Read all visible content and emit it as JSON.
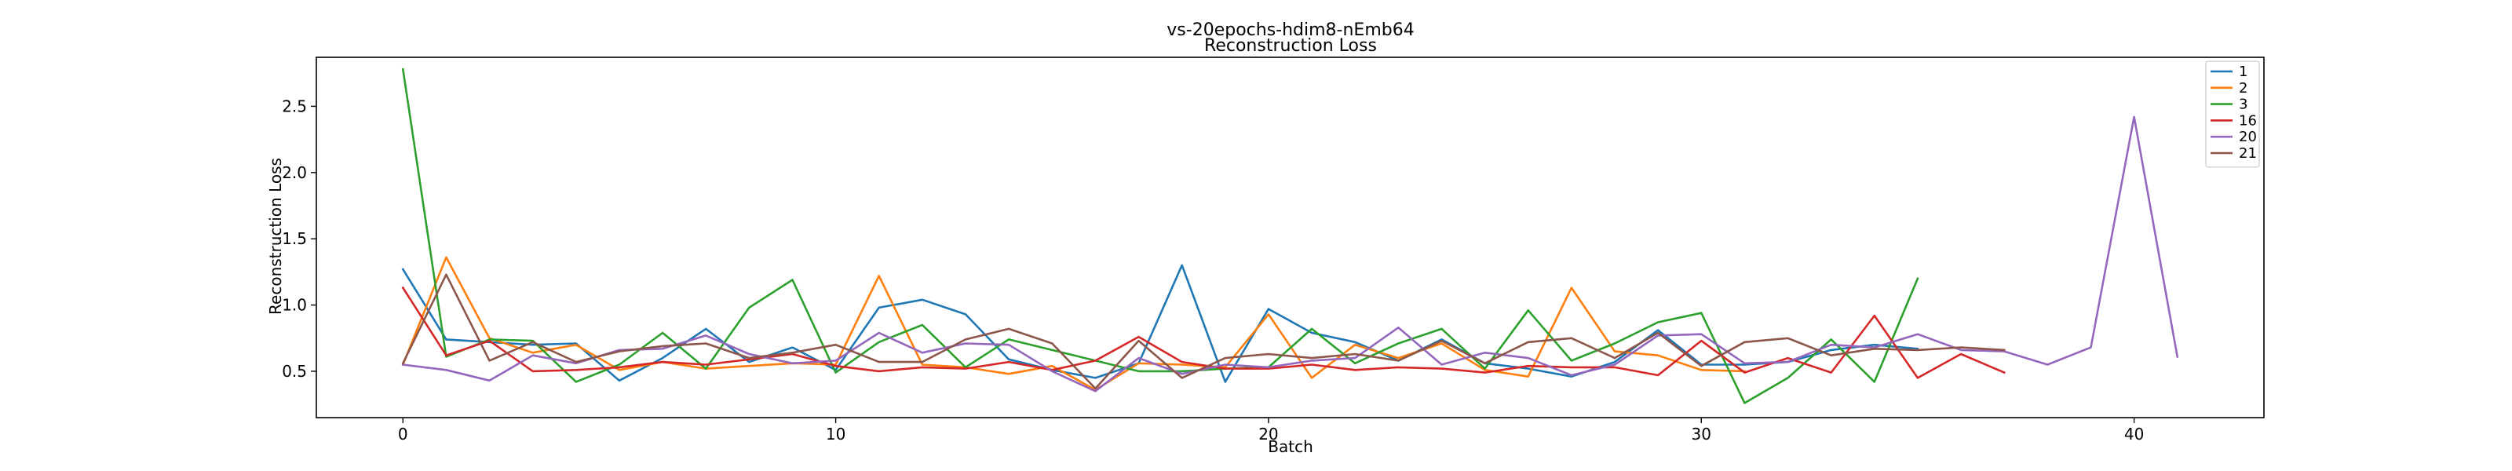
{
  "chart_data": {
    "type": "line",
    "title": "vs-20epochs-hdim8-nEmb64",
    "subtitle": "Reconstruction Loss",
    "xlabel": "Batch",
    "ylabel": "Reconstruction Loss",
    "xlim": [
      -2,
      43
    ],
    "ylim": [
      0.15,
      2.87
    ],
    "xticks": [
      0,
      10,
      20,
      30,
      40
    ],
    "yticks": [
      0.5,
      1.0,
      1.5,
      2.0,
      2.5
    ],
    "xtick_labels": [
      "0",
      "10",
      "20",
      "30",
      "40"
    ],
    "ytick_labels": [
      "0.5",
      "1.0",
      "1.5",
      "2.0",
      "2.5"
    ],
    "legend_position": "top-right",
    "grid": false,
    "series": [
      {
        "name": "1",
        "color": "#1f77b4",
        "values": [
          1.27,
          0.74,
          0.72,
          0.7,
          0.71,
          0.43,
          0.6,
          0.82,
          0.57,
          0.68,
          0.51,
          0.98,
          1.04,
          0.93,
          0.59,
          0.51,
          0.45,
          0.56,
          1.3,
          0.42,
          0.97,
          0.79,
          0.72,
          0.58,
          0.74,
          0.56,
          0.52,
          0.46,
          0.57,
          0.81,
          0.55,
          0.55,
          0.57,
          0.66,
          0.7,
          0.67
        ]
      },
      {
        "name": "2",
        "color": "#ff7f0e",
        "values": [
          0.55,
          1.36,
          0.75,
          0.64,
          0.7,
          0.51,
          0.57,
          0.52,
          0.54,
          0.56,
          0.55,
          1.22,
          0.55,
          0.53,
          0.48,
          0.54,
          0.36,
          0.56,
          0.55,
          0.53,
          0.93,
          0.45,
          0.7,
          0.6,
          0.71,
          0.51,
          0.46,
          1.13,
          0.65,
          0.62,
          0.51,
          0.5
        ]
      },
      {
        "name": "3",
        "color": "#2ca02c",
        "values": [
          2.78,
          0.61,
          0.74,
          0.73,
          0.42,
          0.55,
          0.79,
          0.52,
          0.98,
          1.19,
          0.49,
          0.72,
          0.85,
          0.53,
          0.74,
          0.66,
          0.58,
          0.5,
          0.5,
          0.52,
          0.53,
          0.82,
          0.56,
          0.71,
          0.82,
          0.52,
          0.96,
          0.58,
          0.71,
          0.87,
          0.94,
          0.26,
          0.45,
          0.74,
          0.42,
          1.2
        ]
      },
      {
        "name": "16",
        "color": "#d62728",
        "values": [
          1.13,
          0.62,
          0.73,
          0.5,
          0.51,
          0.53,
          0.57,
          0.55,
          0.59,
          0.63,
          0.54,
          0.5,
          0.53,
          0.52,
          0.57,
          0.51,
          0.58,
          0.76,
          0.57,
          0.52,
          0.52,
          0.55,
          0.51,
          0.53,
          0.52,
          0.49,
          0.54,
          0.53,
          0.53,
          0.47,
          0.73,
          0.49,
          0.6,
          0.49,
          0.92,
          0.45,
          0.63,
          0.49
        ]
      },
      {
        "name": "20",
        "color": "#9467bd",
        "values": [
          0.55,
          0.51,
          0.43,
          0.62,
          0.56,
          0.66,
          0.67,
          0.77,
          0.63,
          0.56,
          0.58,
          0.79,
          0.64,
          0.71,
          0.7,
          0.5,
          0.35,
          0.6,
          0.48,
          0.55,
          0.53,
          0.58,
          0.6,
          0.83,
          0.55,
          0.64,
          0.6,
          0.47,
          0.55,
          0.77,
          0.78,
          0.56,
          0.57,
          0.7,
          0.68,
          0.78,
          0.66,
          0.65,
          0.55,
          0.68,
          2.42,
          0.61
        ]
      },
      {
        "name": "21",
        "color": "#8c564b",
        "values": [
          0.56,
          1.23,
          0.58,
          0.72,
          0.57,
          0.65,
          0.69,
          0.71,
          0.6,
          0.64,
          0.7,
          0.57,
          0.57,
          0.74,
          0.82,
          0.71,
          0.37,
          0.73,
          0.45,
          0.6,
          0.63,
          0.6,
          0.63,
          0.58,
          0.73,
          0.56,
          0.72,
          0.75,
          0.6,
          0.79,
          0.54,
          0.72,
          0.75,
          0.62,
          0.67,
          0.66,
          0.68,
          0.66
        ]
      }
    ]
  }
}
